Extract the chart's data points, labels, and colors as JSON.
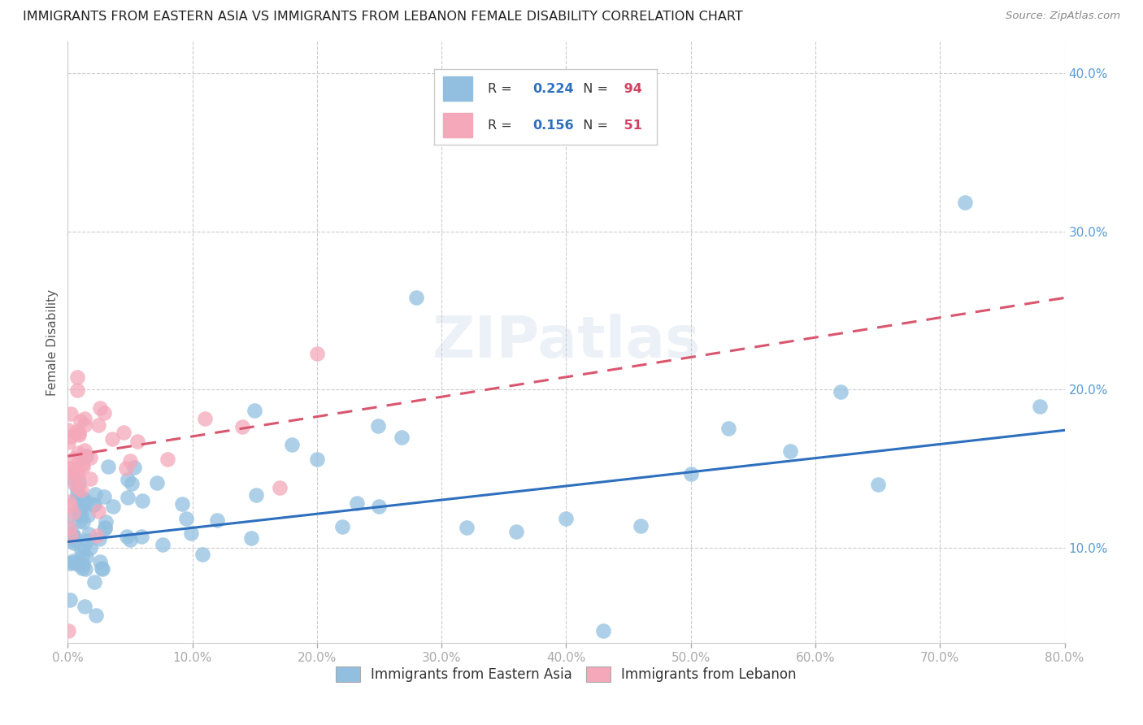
{
  "title": "IMMIGRANTS FROM EASTERN ASIA VS IMMIGRANTS FROM LEBANON FEMALE DISABILITY CORRELATION CHART",
  "source": "Source: ZipAtlas.com",
  "xlabel_blue": "Immigrants from Eastern Asia",
  "xlabel_pink": "Immigrants from Lebanon",
  "ylabel": "Female Disability",
  "r_blue": 0.224,
  "n_blue": 94,
  "r_pink": 0.156,
  "n_pink": 51,
  "color_blue": "#92bfdf",
  "color_pink": "#f4a8ba",
  "line_blue": "#2e6fbe",
  "line_pink": "#d9566e",
  "background": "#ffffff",
  "xlim": [
    0.0,
    0.8
  ],
  "ylim": [
    0.04,
    0.42
  ],
  "xticks": [
    0.0,
    0.1,
    0.2,
    0.3,
    0.4,
    0.5,
    0.6,
    0.7,
    0.8
  ],
  "yticks": [
    0.1,
    0.2,
    0.3,
    0.4
  ],
  "legend_r_color": "#2a5cb8",
  "legend_n_color": "#d44060"
}
